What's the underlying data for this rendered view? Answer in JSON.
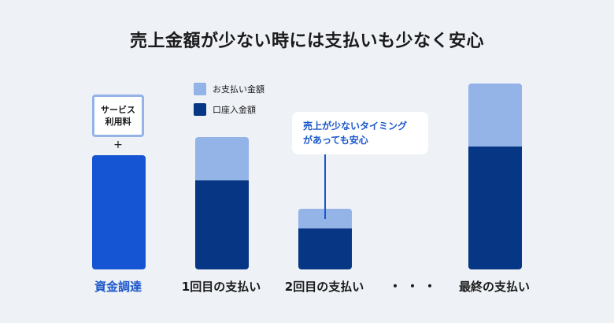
{
  "title": "売上金額が少ない時には支払いも少なく安心",
  "colors": {
    "payment": "#94b3e6",
    "account_deposit": "#073684",
    "funding": "#1555d3",
    "accent_text": "#1b57c9",
    "background": "#eef1f6"
  },
  "service_fee_box": {
    "line1": "サービス",
    "line2": "利用料"
  },
  "plus_sign": "+",
  "callout": {
    "line1": "売上が少ないタイミング",
    "line2": "があっても安心"
  },
  "ellipsis": "・・・",
  "chart_data": {
    "type": "bar",
    "title": "売上金額が少ない時には支払いも少なく安心",
    "xlabel": "",
    "ylabel": "",
    "legend_position": "top-left",
    "categories": [
      "資金調達",
      "1回目の支払い",
      "2回目の支払い",
      "最終の支払い"
    ],
    "series": [
      {
        "name": "口座入金額",
        "values": [
          null,
          113,
          52,
          156
        ]
      },
      {
        "name": "お支払い金額",
        "values": [
          null,
          55,
          25,
          80
        ]
      }
    ],
    "funding_value": 145,
    "ylim": [
      0,
      236
    ]
  }
}
